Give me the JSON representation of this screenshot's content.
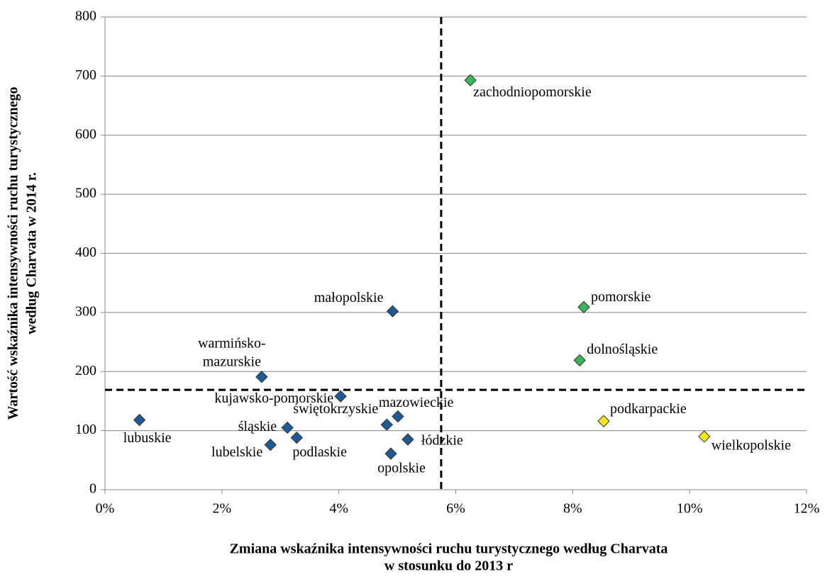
{
  "chart_data": {
    "type": "scatter",
    "xlabel": [
      "Zmiana wskaźnika intensywności ruchu turystycznego według Charvata",
      "w stosunku do  2013 r"
    ],
    "ylabel": [
      "Wartość wskaźnika intensywności ruchu turystycznego",
      "według Charvata w 2014 r."
    ],
    "xlim": [
      0,
      12
    ],
    "ylim": [
      0,
      800
    ],
    "xticks": [
      {
        "value": 0,
        "label": "0%"
      },
      {
        "value": 2,
        "label": "2%"
      },
      {
        "value": 4,
        "label": "4%"
      },
      {
        "value": 6,
        "label": "6%"
      },
      {
        "value": 8,
        "label": "8%"
      },
      {
        "value": 10,
        "label": "10%"
      },
      {
        "value": 12,
        "label": "12%"
      }
    ],
    "yticks": [
      0,
      100,
      200,
      300,
      400,
      500,
      600,
      700,
      800
    ],
    "grid": true,
    "reference_lines": {
      "x": 5.75,
      "y": 169
    },
    "points": [
      {
        "label": "zachodniopomorskie",
        "x": 6.25,
        "y": 693,
        "color": "#3cb55a"
      },
      {
        "label": "pomorskie",
        "x": 8.19,
        "y": 309,
        "color": "#3cb55a"
      },
      {
        "label": "dolnośląskie",
        "x": 8.12,
        "y": 219,
        "color": "#3cb55a"
      },
      {
        "label": "podkarpackie",
        "x": 8.53,
        "y": 116,
        "color": "#f2e41e"
      },
      {
        "label": "wielkopolskie",
        "x": 10.25,
        "y": 90,
        "color": "#f2e41e"
      },
      {
        "label": "małopolskie",
        "x": 4.92,
        "y": 302,
        "color": "#1f5a96"
      },
      {
        "label": [
          "warmińsko-",
          "mazurskie"
        ],
        "x": 2.68,
        "y": 191,
        "color": "#1f5a96"
      },
      {
        "label": "kujawsko-pomorskie",
        "x": 4.03,
        "y": 158,
        "color": "#1f5a96"
      },
      {
        "label": "lubuskie",
        "x": 0.59,
        "y": 118,
        "color": "#1f5a96"
      },
      {
        "label": "śląskie",
        "x": 3.12,
        "y": 105,
        "color": "#1f5a96"
      },
      {
        "label": "podlaskie",
        "x": 3.28,
        "y": 88,
        "color": "#1f5a96"
      },
      {
        "label": "lubelskie",
        "x": 2.83,
        "y": 76,
        "color": "#1f5a96"
      },
      {
        "label": "świętokrzyskie",
        "x": 4.82,
        "y": 110,
        "color": "#1f5a96"
      },
      {
        "label": "mazowieckie",
        "x": 5.01,
        "y": 124,
        "color": "#1f5a96"
      },
      {
        "label": "łódzkie",
        "x": 5.18,
        "y": 85,
        "color": "#1f5a96"
      },
      {
        "label": "opolskie",
        "x": 4.89,
        "y": 61,
        "color": "#1f5a96"
      }
    ]
  }
}
